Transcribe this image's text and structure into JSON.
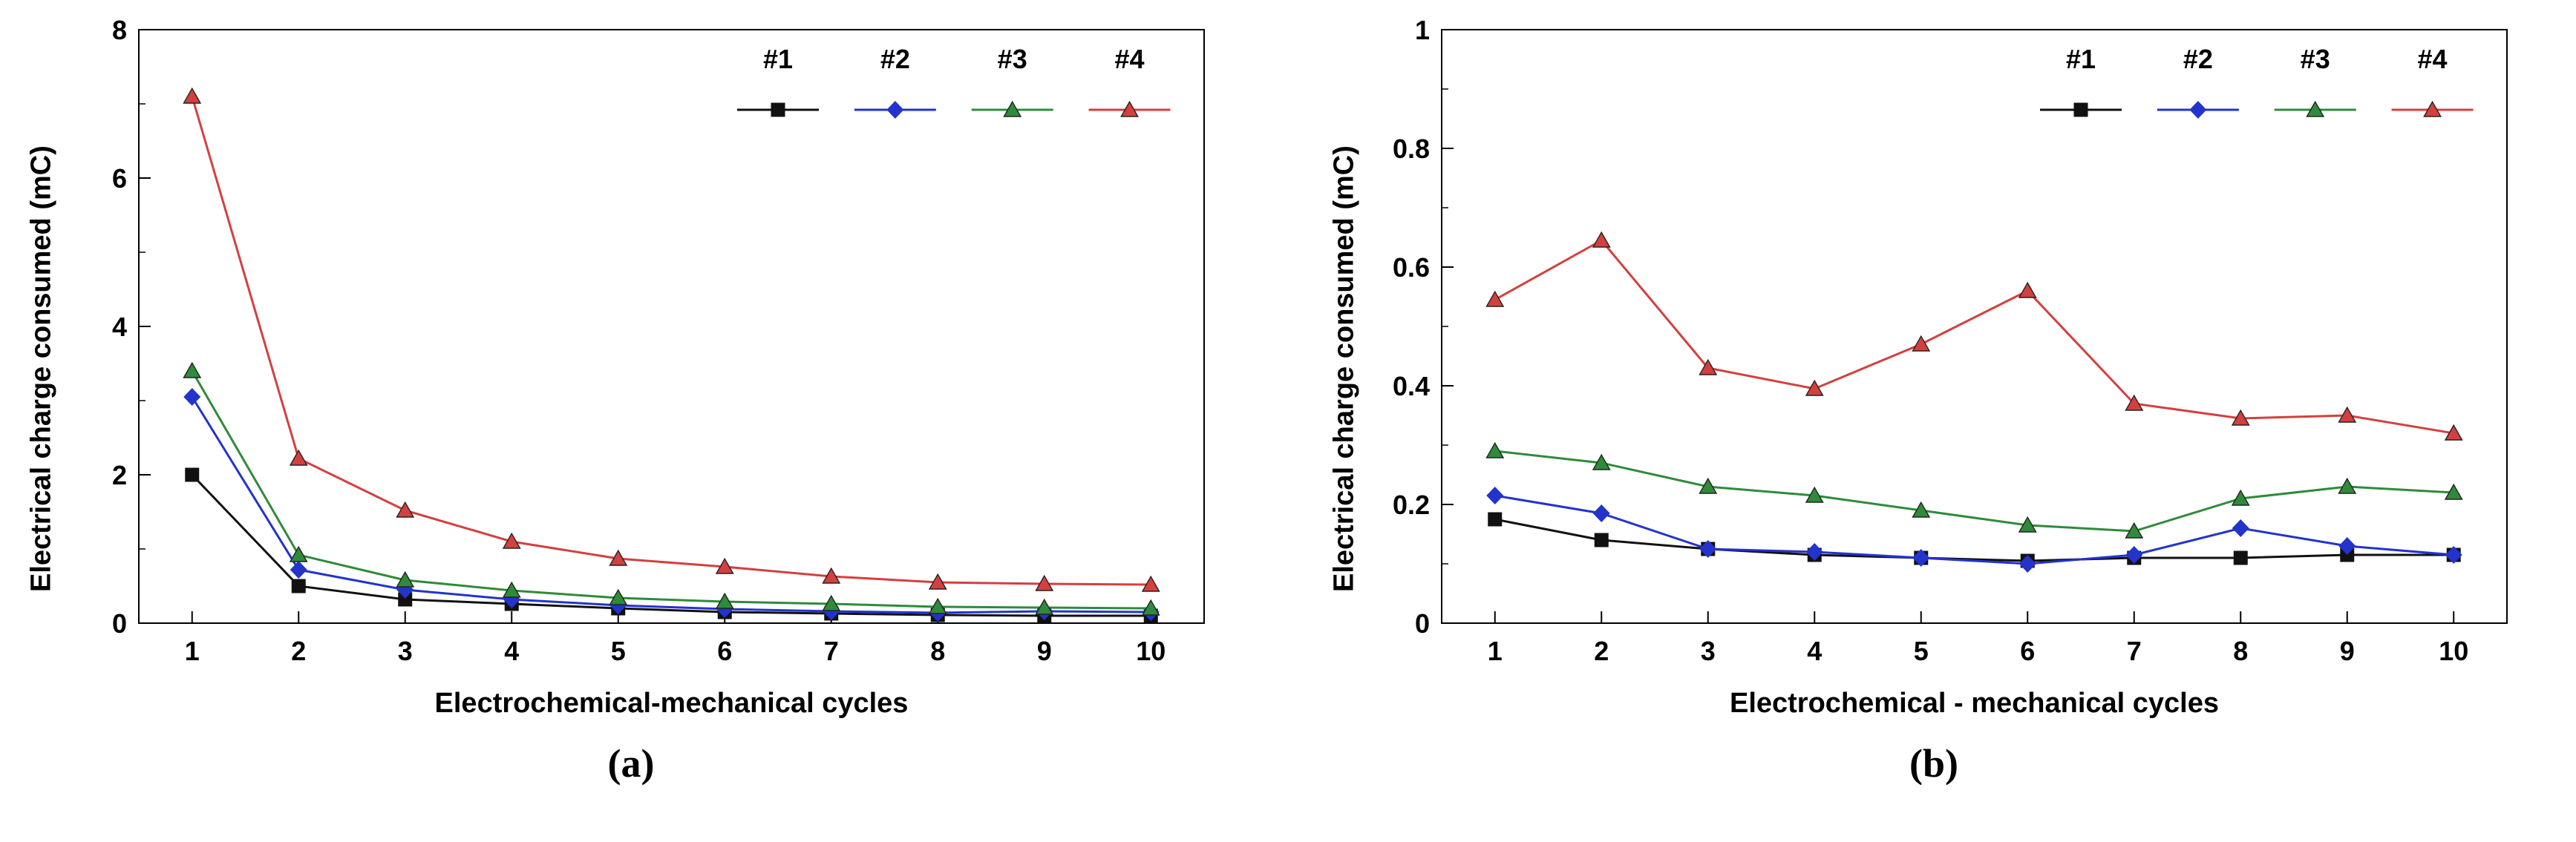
{
  "figure": {
    "background": "#ffffff",
    "frame_color": "#000000",
    "text_color": "#000000"
  },
  "chart_data": [
    {
      "type": "line",
      "panel": "a",
      "subfig_label": "(a)",
      "title": "",
      "xlabel": "Electrochemical-mechanical cycles",
      "ylabel": "Electrical charge consumed (mC)",
      "x": [
        1,
        2,
        3,
        4,
        5,
        6,
        7,
        8,
        9,
        10
      ],
      "xtick_labels": [
        "1",
        "2",
        "3",
        "4",
        "5",
        "6",
        "7",
        "8",
        "9",
        "10"
      ],
      "ylim": [
        0,
        8
      ],
      "yticks": [
        0,
        2,
        4,
        6,
        8
      ],
      "ytick_labels": [
        "0",
        "2",
        "4",
        "6",
        "8"
      ],
      "grid": false,
      "legend_position": "top-right-inside",
      "series": [
        {
          "name": "#1",
          "color": "#111111",
          "marker": "square",
          "values": [
            2.0,
            0.5,
            0.32,
            0.26,
            0.2,
            0.15,
            0.13,
            0.11,
            0.1,
            0.1
          ]
        },
        {
          "name": "#2",
          "color": "#2333cc",
          "marker": "diamond",
          "values": [
            3.05,
            0.72,
            0.45,
            0.32,
            0.24,
            0.19,
            0.16,
            0.14,
            0.16,
            0.15
          ]
        },
        {
          "name": "#3",
          "color": "#2f8b3a",
          "marker": "triangle",
          "values": [
            3.4,
            0.92,
            0.58,
            0.44,
            0.34,
            0.29,
            0.26,
            0.22,
            0.21,
            0.2
          ]
        },
        {
          "name": "#4",
          "color": "#d3403f",
          "marker": "triangle",
          "values": [
            7.1,
            2.22,
            1.52,
            1.1,
            0.87,
            0.76,
            0.63,
            0.55,
            0.53,
            0.52
          ]
        }
      ]
    },
    {
      "type": "line",
      "panel": "b",
      "subfig_label": "(b)",
      "title": "",
      "xlabel": "Electrochemical - mechanical cycles",
      "ylabel": "Electrical charge consumed (mC)",
      "x": [
        1,
        2,
        3,
        4,
        5,
        6,
        7,
        8,
        9,
        10
      ],
      "xtick_labels": [
        "1",
        "2",
        "3",
        "4",
        "5",
        "6",
        "7",
        "8",
        "9",
        "10"
      ],
      "ylim": [
        0,
        1
      ],
      "yticks": [
        0,
        0.2,
        0.4,
        0.6,
        0.8,
        1
      ],
      "ytick_labels": [
        "0",
        "0.2",
        "0.4",
        "0.6",
        "0.8",
        "1"
      ],
      "grid": false,
      "legend_position": "top-right-inside",
      "series": [
        {
          "name": "#1",
          "color": "#111111",
          "marker": "square",
          "values": [
            0.175,
            0.14,
            0.125,
            0.115,
            0.11,
            0.105,
            0.11,
            0.11,
            0.115,
            0.115
          ]
        },
        {
          "name": "#2",
          "color": "#2333cc",
          "marker": "diamond",
          "values": [
            0.215,
            0.185,
            0.125,
            0.12,
            0.11,
            0.1,
            0.115,
            0.16,
            0.13,
            0.115
          ]
        },
        {
          "name": "#3",
          "color": "#2f8b3a",
          "marker": "triangle",
          "values": [
            0.29,
            0.27,
            0.23,
            0.215,
            0.19,
            0.165,
            0.155,
            0.21,
            0.23,
            0.22
          ]
        },
        {
          "name": "#4",
          "color": "#d3403f",
          "marker": "triangle",
          "values": [
            0.545,
            0.645,
            0.43,
            0.395,
            0.47,
            0.56,
            0.37,
            0.345,
            0.35,
            0.32
          ]
        }
      ]
    }
  ]
}
